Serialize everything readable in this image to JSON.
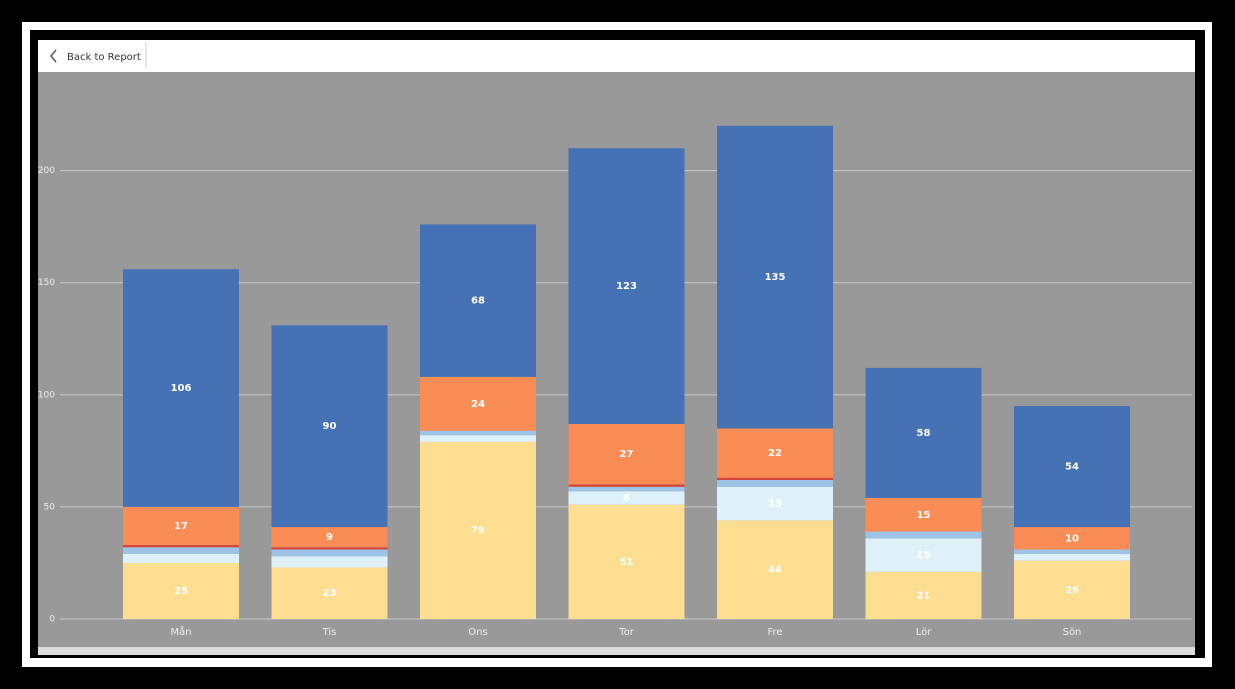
{
  "ui": {
    "back_button": "Back to Report"
  },
  "chart_data": {
    "type": "stacked_bar",
    "categories": [
      "Mån",
      "Tis",
      "Ons",
      "Tor",
      "Fre",
      "Lör",
      "Sön"
    ],
    "series": [
      {
        "color": "#fddd8f",
        "values": [
          25,
          23,
          79,
          51,
          44,
          21,
          26
        ]
      },
      {
        "color": "#dff1f8",
        "values": [
          4,
          5,
          3,
          6,
          15,
          15,
          3
        ]
      },
      {
        "color": "#9dc3e6",
        "values": [
          3,
          3,
          2,
          2,
          3,
          3,
          2
        ]
      },
      {
        "color": "#d6453a",
        "values": [
          1,
          1,
          0,
          1,
          1,
          0,
          0
        ]
      },
      {
        "color": "#fa8c56",
        "values": [
          17,
          9,
          24,
          27,
          22,
          15,
          10
        ]
      },
      {
        "color": "#4472b4",
        "values": [
          106,
          90,
          68,
          123,
          135,
          58,
          54
        ]
      }
    ],
    "ylim": [
      0,
      244
    ],
    "yticks": [
      0,
      50,
      100,
      150,
      200
    ],
    "grid": true
  }
}
